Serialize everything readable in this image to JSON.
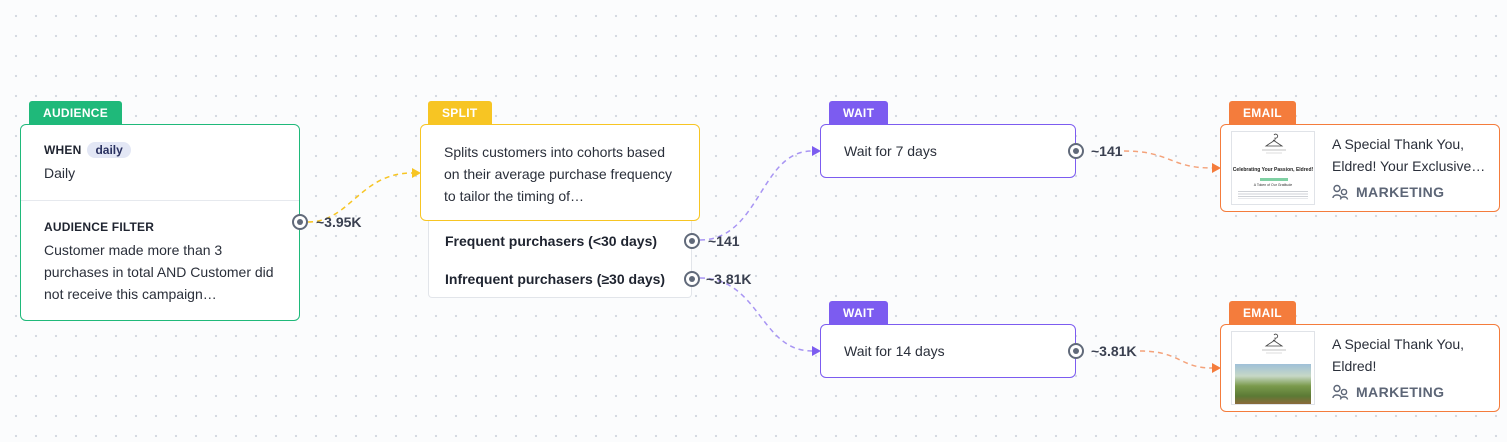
{
  "audience": {
    "tag": "AUDIENCE",
    "when_label": "WHEN",
    "when_pill": "daily",
    "when_value": "Daily",
    "filter_label": "AUDIENCE FILTER",
    "filter_text": "Customer made more than 3 purchases in total AND Customer did not receive this campaign…",
    "count": "~3.95K"
  },
  "split": {
    "tag": "SPLIT",
    "description": "Splits customers into cohorts based on their average purchase frequency to tailor the timing of…",
    "branches": [
      {
        "label": "Frequent purchasers (<30 days)",
        "count": "~141"
      },
      {
        "label": "Infrequent purchasers (≥30 days)",
        "count": "~3.81K"
      }
    ]
  },
  "waits": [
    {
      "tag": "WAIT",
      "text": "Wait for 7 days",
      "count": "~141"
    },
    {
      "tag": "WAIT",
      "text": "Wait for 14 days",
      "count": "~3.81K"
    }
  ],
  "emails": [
    {
      "tag": "EMAIL",
      "subject": "A Special Thank You, Eldred! Your Exclusive…",
      "channel": "MARKETING",
      "thumb_heading": "Celebrating Your Passion, Eldred!",
      "thumb_sub": "A Token of Our Gratitude"
    },
    {
      "tag": "EMAIL",
      "subject": "A Special Thank You, Eldred!",
      "channel": "MARKETING"
    }
  ],
  "colors": {
    "audience": "#1fb97a",
    "split": "#f7c523",
    "wait": "#7c5cf0",
    "email": "#f47c3c"
  }
}
